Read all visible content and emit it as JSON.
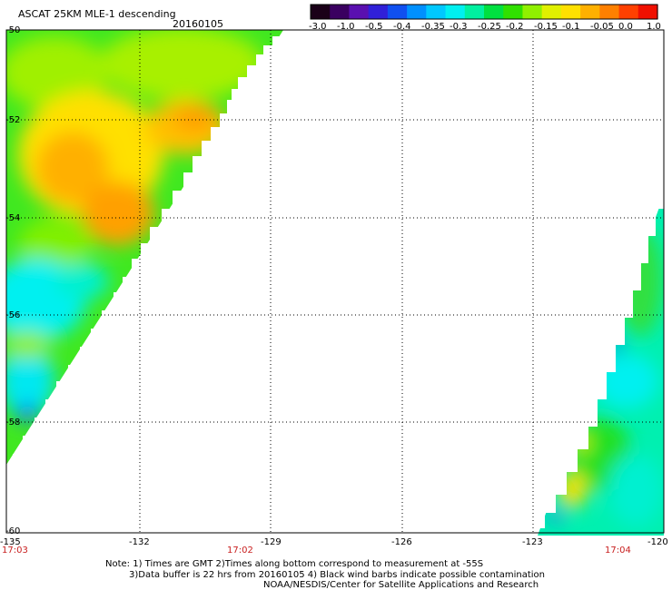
{
  "header": {
    "title": "ASCAT 25KM MLE-1 descending",
    "date": "20160105"
  },
  "colorbar": {
    "tick_labels": [
      "-3.0",
      "-1.0",
      "-0.5",
      "-0.4",
      "-0.35",
      "-0.3",
      "-0.25",
      "-0.2",
      "-0.15",
      "-0.1",
      "-0.05",
      "0.0",
      "1.0"
    ],
    "colors": [
      "#1a0018",
      "#3a0060",
      "#5a10b0",
      "#3020d8",
      "#1050f0",
      "#0090ff",
      "#00c8ff",
      "#00f0f0",
      "#00f0a0",
      "#00e040",
      "#30e000",
      "#90f000",
      "#e0f000",
      "#ffe000",
      "#ffb000",
      "#ff8000",
      "#ff4000",
      "#f01000"
    ]
  },
  "axes": {
    "x_labels": [
      "-135",
      "-132",
      "-129",
      "-126",
      "-123",
      "-120"
    ],
    "y_labels": [
      "-50",
      "-52",
      "-54",
      "-56",
      "-58",
      "-60"
    ],
    "lon_range": [
      -135,
      -120
    ],
    "lat_range": [
      -60,
      -50
    ]
  },
  "times": [
    "17:03",
    "17:02",
    "17:04"
  ],
  "notes": [
    "Note: 1) Times are GMT 2)Times along bottom correspond to measurement at -55S",
    "3)Data buffer is 22 hrs from 20160105 4) Black wind barbs indicate possible contamination",
    "NOAA/NESDIS/Center for Satellite Applications and Research"
  ],
  "swaths": [
    {
      "name": "west-swath",
      "lon": [
        -135,
        -128.8,
        -135.7
      ],
      "lat": [
        -50,
        -50,
        -59.5
      ],
      "dominant_values": "0.0 to -0.2 (yellow/orange center near -53S -133W, cyan/blue along western and southern edges)"
    },
    {
      "name": "east-swath",
      "lon": [
        -120,
        -122.8,
        -120
      ],
      "lat": [
        -53.5,
        -60,
        -60
      ],
      "dominant_values": "-0.2 to -0.3 (green/cyan, yellow spots near -58.5S -122.5W)"
    }
  ]
}
